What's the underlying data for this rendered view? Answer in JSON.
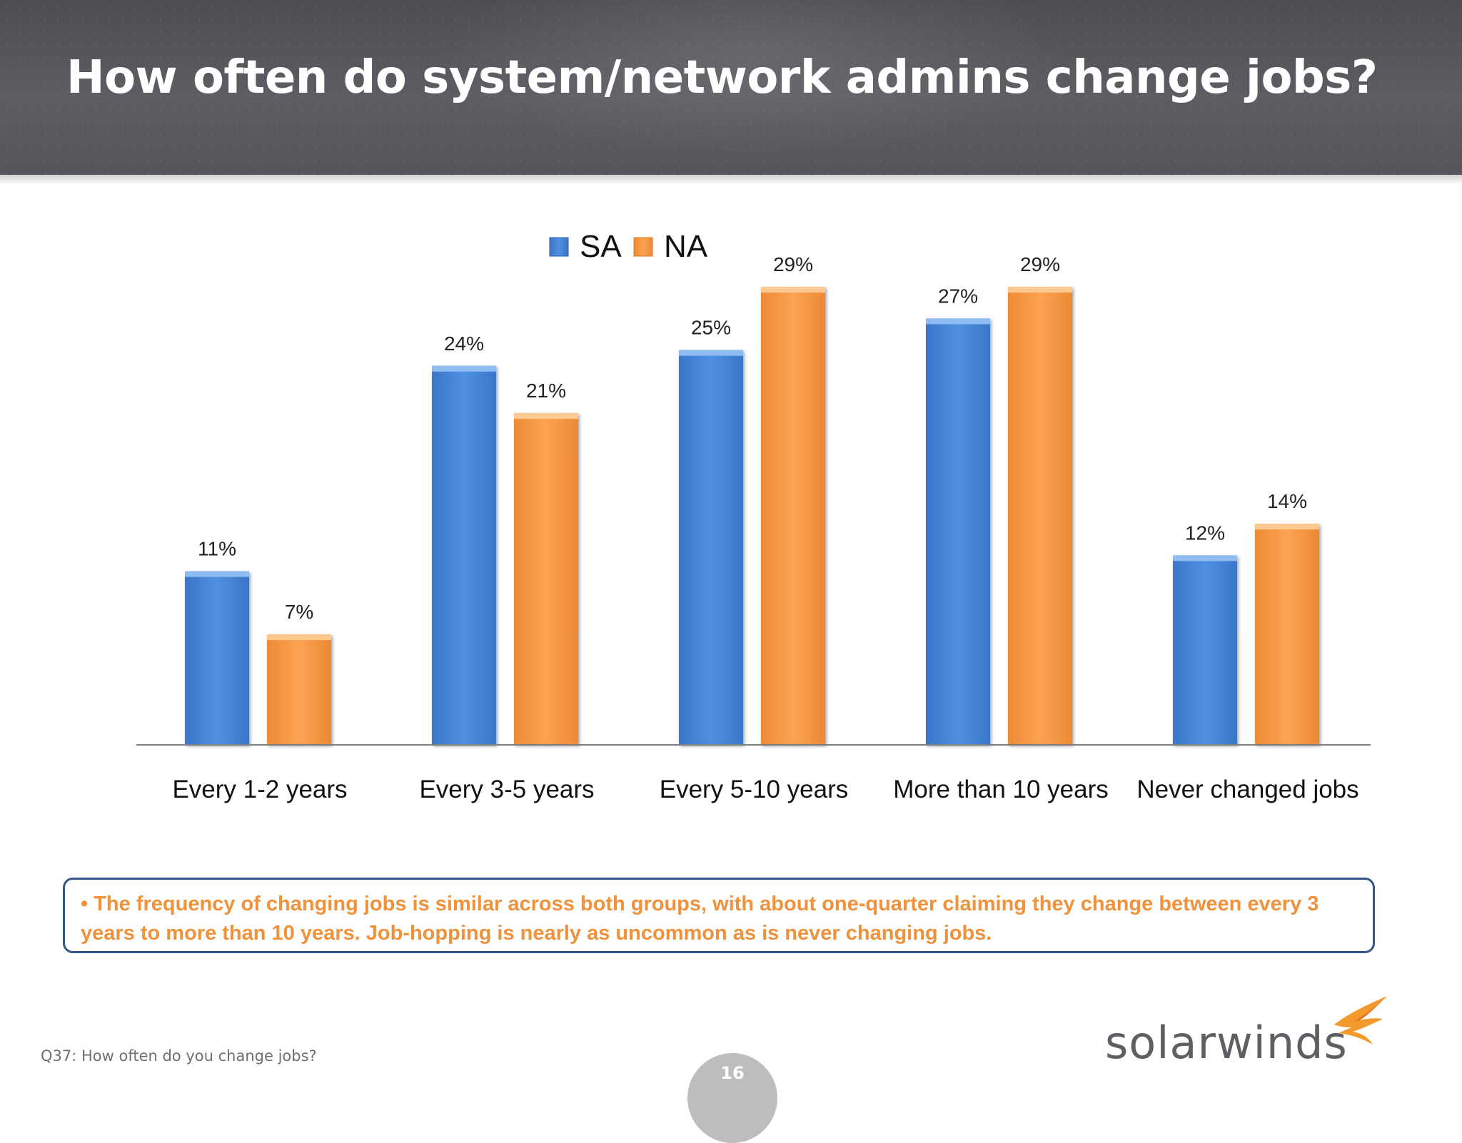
{
  "header": {
    "title": "How often do system/network admins change jobs?"
  },
  "chart_data": {
    "type": "bar",
    "categories": [
      "Every 1-2 years",
      "Every 3-5 years",
      "Every 5-10 years",
      "More than 10 years",
      "Never changed jobs"
    ],
    "series": [
      {
        "name": "SA",
        "values": [
          11,
          24,
          25,
          27,
          12
        ],
        "labels": [
          "11%",
          "24%",
          "25%",
          "27%",
          "12%"
        ],
        "color": "#4a8ade"
      },
      {
        "name": "NA",
        "values": [
          7,
          21,
          29,
          29,
          14
        ],
        "labels": [
          "7%",
          "21%",
          "29%",
          "29%",
          "14%"
        ],
        "color": "#f89c4a"
      }
    ],
    "ylim": [
      0,
      30
    ],
    "grid": false,
    "legend": "top-center",
    "value_suffix": "%"
  },
  "note": {
    "text": "• The frequency of changing jobs is similar across both groups, with about one-quarter claiming they change between every 3 years to more than 10 years.  Job-hopping is nearly as uncommon as is never changing jobs."
  },
  "footer": {
    "question": "Q37: How often do you change jobs?",
    "page_number": "16",
    "logo_text": "solarwinds"
  },
  "colors": {
    "header_bg": "#55575c",
    "accent_orange": "#f0923c",
    "note_border": "#34558b",
    "axis": "#7f7f7f"
  },
  "icons": {
    "logo": "solarwinds-flame-icon"
  }
}
